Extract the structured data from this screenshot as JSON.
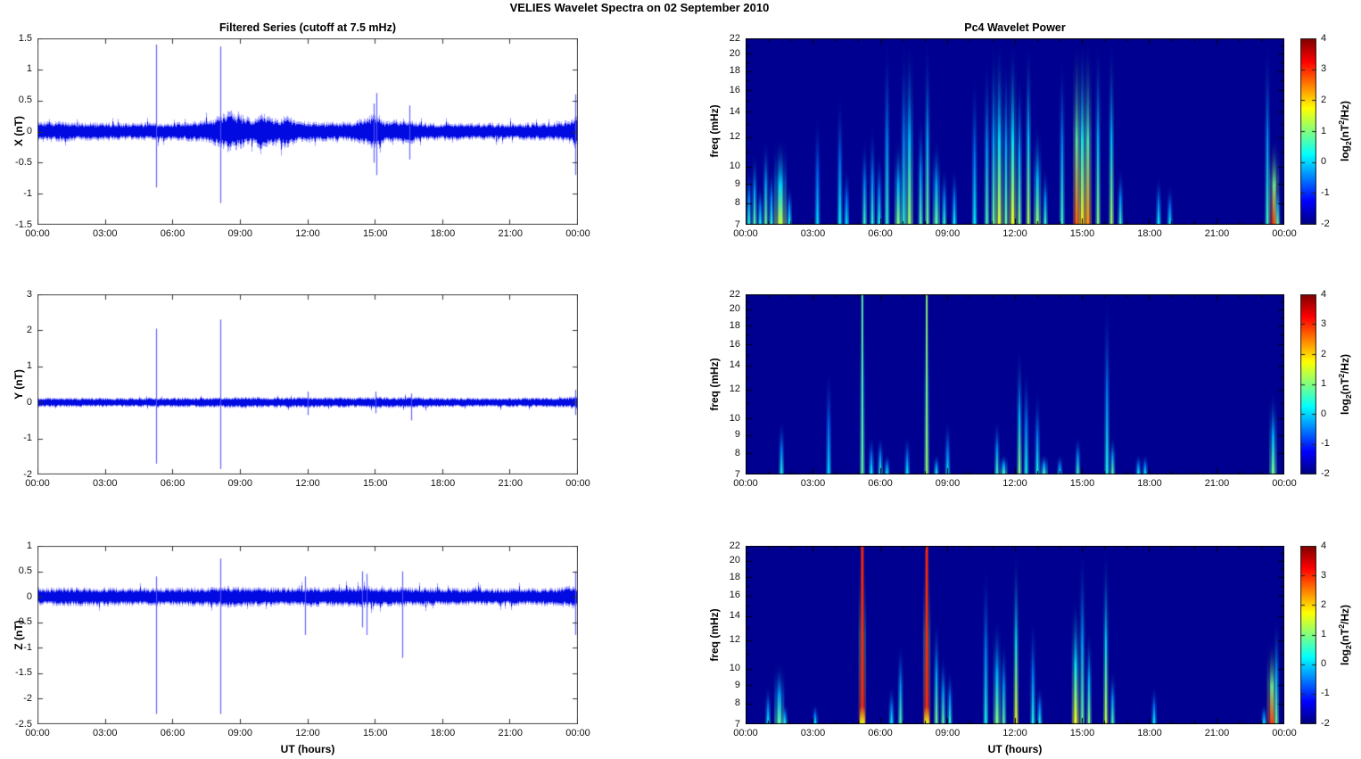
{
  "title": "VELIES Wavelet Spectra on 02 September 2010",
  "left_column_title": "Filtered Series (cutoff at 7.5 mHz)",
  "right_column_title": "Pc4 Wavelet Power",
  "xlabel": "UT (hours)",
  "x_ticks": [
    "00:00",
    "03:00",
    "06:00",
    "09:00",
    "12:00",
    "15:00",
    "18:00",
    "21:00",
    "00:00"
  ],
  "colorbar": {
    "ticks": [
      "4",
      "3",
      "2",
      "1",
      "0",
      "-1",
      "-2"
    ],
    "range": [
      -2,
      4
    ],
    "label_prefix": "log",
    "label_sub": "2",
    "label_mid": "(nT",
    "label_sup": "2",
    "label_suffix": "/Hz)",
    "colormap": "jet",
    "top_color": "#7f0000",
    "bottom_color": "#000090"
  },
  "chart_data": [
    {
      "type": "line",
      "title": "Filtered Series (cutoff at 7.5 mHz)",
      "ylabel": "X (nT)",
      "xlabel": "UT (hours)",
      "x_range_hours": [
        0,
        24
      ],
      "ylim": [
        -1.5,
        1.5
      ],
      "yticks": [
        "1.5",
        "1",
        "0.5",
        "0",
        "-0.5",
        "-1",
        "-1.5"
      ],
      "line_color": "#0000ee",
      "noise_envelope": [
        [
          0,
          0.1
        ],
        [
          1,
          0.1
        ],
        [
          2,
          0.09
        ],
        [
          3,
          0.09
        ],
        [
          4,
          0.085
        ],
        [
          5,
          0.09
        ],
        [
          6,
          0.09
        ],
        [
          7,
          0.1
        ],
        [
          7.6,
          0.12
        ],
        [
          8.0,
          0.16
        ],
        [
          8.5,
          0.2
        ],
        [
          9.0,
          0.17
        ],
        [
          9.5,
          0.13
        ],
        [
          9.9,
          0.18
        ],
        [
          10.3,
          0.16
        ],
        [
          10.7,
          0.13
        ],
        [
          11.0,
          0.17
        ],
        [
          11.4,
          0.12
        ],
        [
          12,
          0.1
        ],
        [
          13,
          0.095
        ],
        [
          14,
          0.1
        ],
        [
          14.8,
          0.17
        ],
        [
          15.1,
          0.19
        ],
        [
          15.4,
          0.11
        ],
        [
          16.3,
          0.13
        ],
        [
          16.6,
          0.12
        ],
        [
          17,
          0.09
        ],
        [
          19,
          0.085
        ],
        [
          21,
          0.085
        ],
        [
          23,
          0.09
        ],
        [
          23.7,
          0.13
        ],
        [
          23.95,
          0.19
        ],
        [
          24,
          0.16
        ]
      ],
      "spikes": [
        [
          5.25,
          1.4,
          -0.9
        ],
        [
          8.1,
          1.37,
          -1.15
        ],
        [
          14.95,
          0.45,
          -0.5
        ],
        [
          15.05,
          0.62,
          -0.7
        ],
        [
          16.5,
          0.42,
          -0.45
        ],
        [
          23.9,
          0.6,
          -0.7
        ]
      ]
    },
    {
      "type": "line",
      "ylabel": "Y (nT)",
      "x_range_hours": [
        0,
        24
      ],
      "ylim": [
        -2,
        3
      ],
      "yticks": [
        "3",
        "2",
        "1",
        "0",
        "-1",
        "-2"
      ],
      "line_color": "#0000ee",
      "noise_envelope": [
        [
          0,
          0.085
        ],
        [
          3,
          0.08
        ],
        [
          6,
          0.085
        ],
        [
          8,
          0.09
        ],
        [
          9,
          0.095
        ],
        [
          11,
          0.09
        ],
        [
          12,
          0.095
        ],
        [
          14,
          0.085
        ],
        [
          15,
          0.1
        ],
        [
          16,
          0.09
        ],
        [
          16.6,
          0.1
        ],
        [
          18,
          0.08
        ],
        [
          21,
          0.08
        ],
        [
          23.5,
          0.09
        ],
        [
          23.9,
          0.12
        ],
        [
          24,
          0.11
        ]
      ],
      "spikes": [
        [
          5.25,
          2.05,
          -1.7
        ],
        [
          8.1,
          2.3,
          -1.85
        ],
        [
          12.0,
          0.3,
          -0.35
        ],
        [
          15.0,
          0.3,
          -0.3
        ],
        [
          16.6,
          0.25,
          -0.5
        ],
        [
          23.9,
          0.35,
          -0.35
        ]
      ]
    },
    {
      "type": "line",
      "ylabel": "Z (nT)",
      "x_range_hours": [
        0,
        24
      ],
      "ylim": [
        -2.5,
        1
      ],
      "yticks": [
        "1",
        "0.5",
        "0",
        "-0.5",
        "-1",
        "-1.5",
        "-2",
        "-2.5"
      ],
      "line_color": "#0000ee",
      "noise_envelope": [
        [
          0,
          0.11
        ],
        [
          2,
          0.115
        ],
        [
          4,
          0.11
        ],
        [
          6,
          0.11
        ],
        [
          7.5,
          0.12
        ],
        [
          8.5,
          0.13
        ],
        [
          9,
          0.12
        ],
        [
          11,
          0.11
        ],
        [
          12,
          0.115
        ],
        [
          14,
          0.12
        ],
        [
          14.6,
          0.13
        ],
        [
          15,
          0.12
        ],
        [
          17,
          0.11
        ],
        [
          20,
          0.105
        ],
        [
          23,
          0.11
        ],
        [
          23.8,
          0.14
        ],
        [
          24,
          0.13
        ]
      ],
      "spikes": [
        [
          5.25,
          0.4,
          -2.3
        ],
        [
          8.1,
          0.75,
          -2.3
        ],
        [
          11.9,
          0.4,
          -0.75
        ],
        [
          14.4,
          0.5,
          -0.6
        ],
        [
          14.6,
          0.45,
          -0.75
        ],
        [
          16.2,
          0.5,
          -1.2
        ],
        [
          23.9,
          0.5,
          -0.75
        ]
      ]
    },
    {
      "type": "heatmap",
      "title": "Pc4 Wavelet Power",
      "ylabel": "freq (mHz)",
      "x_range_hours": [
        0,
        24
      ],
      "ylim": [
        7,
        22
      ],
      "yscale": "log",
      "yticks": [
        "22",
        "20",
        "18",
        "16",
        "14",
        "12",
        "10",
        "9",
        "8",
        "7"
      ],
      "clim": [
        -2,
        4
      ],
      "background_power": -2,
      "streaks": [
        {
          "t": 0.15,
          "top": 10,
          "p": 0.5,
          "w": 2
        },
        {
          "t": 0.4,
          "top": 11,
          "p": 0.8,
          "w": 2
        },
        {
          "t": 0.65,
          "top": 9,
          "p": 0.4,
          "w": 2
        },
        {
          "t": 0.9,
          "top": 12,
          "p": 0.9,
          "w": 2
        },
        {
          "t": 1.15,
          "top": 10,
          "p": 0.5,
          "w": 2
        },
        {
          "t": 1.55,
          "top": 12,
          "p": 1.4,
          "w": 5
        },
        {
          "t": 1.95,
          "top": 9,
          "p": 0.4,
          "w": 2
        },
        {
          "t": 3.2,
          "top": 14,
          "p": 0.1,
          "w": 2
        },
        {
          "t": 4.2,
          "top": 16,
          "p": 0.3,
          "w": 2
        },
        {
          "t": 4.5,
          "top": 10,
          "p": 0.2,
          "w": 2
        },
        {
          "t": 5.3,
          "top": 12,
          "p": 0.6,
          "w": 2
        },
        {
          "t": 5.65,
          "top": 13,
          "p": 0.5,
          "w": 2
        },
        {
          "t": 5.95,
          "top": 11,
          "p": 0.4,
          "w": 2
        },
        {
          "t": 6.3,
          "top": 22,
          "p": 0.5,
          "w": 2
        },
        {
          "t": 6.8,
          "top": 12,
          "p": 1.0,
          "w": 3
        },
        {
          "t": 7.05,
          "top": 22,
          "p": 0.5,
          "w": 2
        },
        {
          "t": 7.3,
          "top": 22,
          "p": 1.1,
          "w": 3
        },
        {
          "t": 7.8,
          "top": 14,
          "p": 0.7,
          "w": 2
        },
        {
          "t": 8.1,
          "top": 22,
          "p": 0.9,
          "w": 2
        },
        {
          "t": 8.5,
          "top": 12,
          "p": 0.8,
          "w": 3
        },
        {
          "t": 8.85,
          "top": 10,
          "p": 0.5,
          "w": 2
        },
        {
          "t": 9.3,
          "top": 10,
          "p": 0.3,
          "w": 2
        },
        {
          "t": 10.2,
          "top": 18,
          "p": 0.3,
          "w": 2
        },
        {
          "t": 10.75,
          "top": 20,
          "p": 0.7,
          "w": 2
        },
        {
          "t": 11.05,
          "top": 22,
          "p": 0.9,
          "w": 2
        },
        {
          "t": 11.3,
          "top": 22,
          "p": 1.5,
          "w": 3
        },
        {
          "t": 11.6,
          "top": 20,
          "p": 0.9,
          "w": 2
        },
        {
          "t": 11.9,
          "top": 22,
          "p": 1.6,
          "w": 3
        },
        {
          "t": 12.2,
          "top": 18,
          "p": 1.0,
          "w": 2
        },
        {
          "t": 12.6,
          "top": 22,
          "p": 1.3,
          "w": 2
        },
        {
          "t": 13.0,
          "top": 13,
          "p": 1.1,
          "w": 3
        },
        {
          "t": 13.35,
          "top": 10,
          "p": 0.6,
          "w": 2
        },
        {
          "t": 14.1,
          "top": 20,
          "p": 0.6,
          "w": 2
        },
        {
          "t": 14.75,
          "top": 22,
          "p": 2.7,
          "w": 3
        },
        {
          "t": 15.0,
          "top": 22,
          "p": 1.9,
          "w": 3
        },
        {
          "t": 15.25,
          "top": 22,
          "p": 2.4,
          "w": 3
        },
        {
          "t": 15.7,
          "top": 22,
          "p": 1.0,
          "w": 2
        },
        {
          "t": 16.3,
          "top": 22,
          "p": 1.2,
          "w": 2
        },
        {
          "t": 16.7,
          "top": 10,
          "p": 0.6,
          "w": 2
        },
        {
          "t": 18.4,
          "top": 9.5,
          "p": 0.3,
          "w": 2
        },
        {
          "t": 18.9,
          "top": 9,
          "p": 0.2,
          "w": 2
        },
        {
          "t": 23.25,
          "top": 22,
          "p": 0.6,
          "w": 2
        },
        {
          "t": 23.55,
          "top": 12,
          "p": 2.9,
          "w": 4
        },
        {
          "t": 23.7,
          "top": 9,
          "p": 0.8,
          "w": 2
        }
      ]
    },
    {
      "type": "heatmap",
      "ylabel": "freq (mHz)",
      "x_range_hours": [
        0,
        24
      ],
      "ylim": [
        7,
        22
      ],
      "yscale": "log",
      "yticks": [
        "22",
        "20",
        "18",
        "16",
        "14",
        "12",
        "10",
        "9",
        "8",
        "7"
      ],
      "clim": [
        -2,
        4
      ],
      "background_power": -2,
      "streaks": [
        {
          "t": 1.6,
          "top": 10,
          "p": 0.4,
          "w": 2
        },
        {
          "t": 3.7,
          "top": 14,
          "p": 0.1,
          "w": 2
        },
        {
          "t": 5.2,
          "top": 22,
          "p": 0.8,
          "w": 2,
          "line": true
        },
        {
          "t": 5.6,
          "top": 9,
          "p": 0.3,
          "w": 2
        },
        {
          "t": 6.0,
          "top": 9,
          "p": 0.5,
          "w": 2
        },
        {
          "t": 6.3,
          "top": 8,
          "p": 0.3,
          "w": 2
        },
        {
          "t": 7.2,
          "top": 9,
          "p": 0.2,
          "w": 2
        },
        {
          "t": 8.07,
          "top": 22,
          "p": 1.1,
          "w": 2,
          "line": true
        },
        {
          "t": 8.5,
          "top": 8,
          "p": 0.4,
          "w": 2
        },
        {
          "t": 9.0,
          "top": 10,
          "p": 0.2,
          "w": 2
        },
        {
          "t": 11.2,
          "top": 10,
          "p": 0.6,
          "w": 2
        },
        {
          "t": 11.5,
          "top": 8,
          "p": 0.7,
          "w": 3
        },
        {
          "t": 12.2,
          "top": 16,
          "p": 1.0,
          "w": 2
        },
        {
          "t": 12.5,
          "top": 14,
          "p": 0.4,
          "w": 2
        },
        {
          "t": 13.0,
          "top": 12,
          "p": 0.4,
          "w": 2
        },
        {
          "t": 13.3,
          "top": 8,
          "p": 0.6,
          "w": 3
        },
        {
          "t": 14.0,
          "top": 8,
          "p": 0.2,
          "w": 2
        },
        {
          "t": 14.8,
          "top": 9,
          "p": 0.6,
          "w": 2
        },
        {
          "t": 16.1,
          "top": 22,
          "p": 0.4,
          "w": 2
        },
        {
          "t": 16.35,
          "top": 9,
          "p": 0.8,
          "w": 2
        },
        {
          "t": 17.5,
          "top": 8,
          "p": 0.3,
          "w": 2
        },
        {
          "t": 17.8,
          "top": 8,
          "p": 0.2,
          "w": 2
        },
        {
          "t": 23.5,
          "top": 12,
          "p": 0.9,
          "w": 3
        }
      ]
    },
    {
      "type": "heatmap",
      "ylabel": "freq (mHz)",
      "xlabel": "UT (hours)",
      "x_range_hours": [
        0,
        24
      ],
      "ylim": [
        7,
        22
      ],
      "yscale": "log",
      "yticks": [
        "22",
        "20",
        "18",
        "16",
        "14",
        "12",
        "10",
        "9",
        "8",
        "7"
      ],
      "clim": [
        -2,
        4
      ],
      "background_power": -2,
      "streaks": [
        {
          "t": 1.0,
          "top": 9,
          "p": 0.3,
          "w": 2
        },
        {
          "t": 1.5,
          "top": 10.5,
          "p": 0.8,
          "w": 4
        },
        {
          "t": 1.75,
          "top": 8,
          "p": 0.5,
          "w": 2
        },
        {
          "t": 3.1,
          "top": 8,
          "p": 0.2,
          "w": 2
        },
        {
          "t": 5.2,
          "top": 22,
          "p": 3.0,
          "w": 3,
          "line": true,
          "base_p": 1.6
        },
        {
          "t": 6.5,
          "top": 9,
          "p": 0.3,
          "w": 2
        },
        {
          "t": 6.9,
          "top": 12,
          "p": 0.7,
          "w": 2
        },
        {
          "t": 8.07,
          "top": 22,
          "p": 3.0,
          "w": 3,
          "line": true,
          "base_p": 1.6
        },
        {
          "t": 8.5,
          "top": 14,
          "p": 0.9,
          "w": 2
        },
        {
          "t": 8.8,
          "top": 11,
          "p": 0.8,
          "w": 2
        },
        {
          "t": 9.1,
          "top": 10,
          "p": 0.5,
          "w": 2
        },
        {
          "t": 10.7,
          "top": 20,
          "p": 0.4,
          "w": 2
        },
        {
          "t": 11.2,
          "top": 14,
          "p": 1.0,
          "w": 3
        },
        {
          "t": 11.5,
          "top": 12,
          "p": 0.8,
          "w": 2
        },
        {
          "t": 12.05,
          "top": 22,
          "p": 1.7,
          "w": 2
        },
        {
          "t": 12.8,
          "top": 14,
          "p": 0.4,
          "w": 2
        },
        {
          "t": 13.1,
          "top": 9,
          "p": 0.4,
          "w": 2
        },
        {
          "t": 14.7,
          "top": 16,
          "p": 1.7,
          "w": 3
        },
        {
          "t": 15.0,
          "top": 22,
          "p": 0.9,
          "w": 2
        },
        {
          "t": 15.3,
          "top": 13,
          "p": 1.0,
          "w": 2
        },
        {
          "t": 16.05,
          "top": 22,
          "p": 1.4,
          "w": 2
        },
        {
          "t": 16.35,
          "top": 10,
          "p": 0.7,
          "w": 2
        },
        {
          "t": 18.2,
          "top": 9,
          "p": 0.2,
          "w": 2
        },
        {
          "t": 23.1,
          "top": 8,
          "p": 0.3,
          "w": 2
        },
        {
          "t": 23.45,
          "top": 12,
          "p": 2.9,
          "w": 4
        },
        {
          "t": 23.65,
          "top": 14,
          "p": 0.9,
          "w": 2
        }
      ]
    }
  ]
}
